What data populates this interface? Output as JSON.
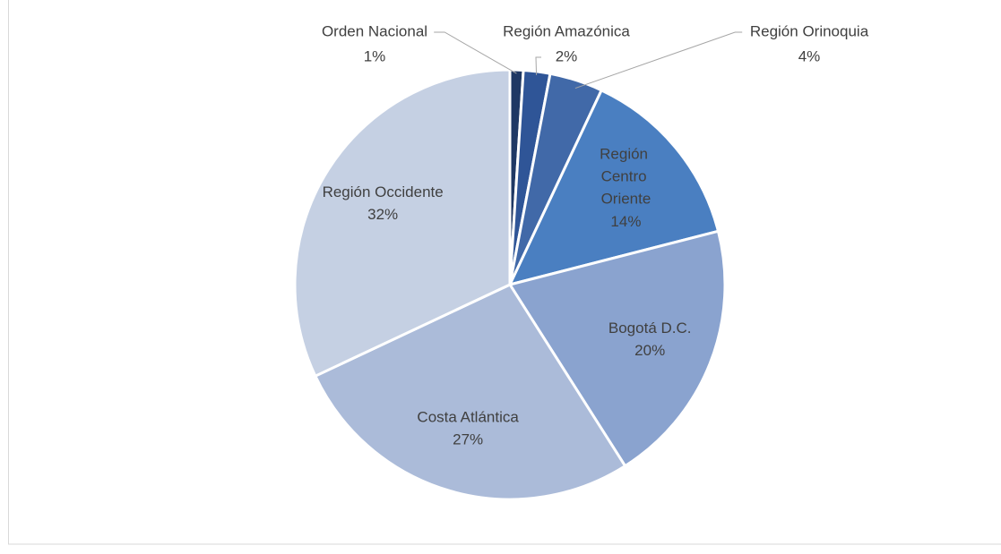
{
  "chart_data": {
    "type": "pie",
    "categories": [
      "Orden Nacional",
      "Región Amazónica",
      "Región Orinoquia",
      "Región Centro Oriente",
      "Bogotá D.C.",
      "Costa Atlántica",
      "Región Occidente"
    ],
    "values": [
      1,
      2,
      4,
      14,
      20,
      27,
      32
    ],
    "value_labels": [
      "1%",
      "2%",
      "4%",
      "14%",
      "20%",
      "27%",
      "32%"
    ],
    "colors": [
      "#1f3864",
      "#2f5597",
      "#4169a8",
      "#4a7fc1",
      "#8aa3cf",
      "#abbbd9",
      "#c5d0e3"
    ]
  }
}
